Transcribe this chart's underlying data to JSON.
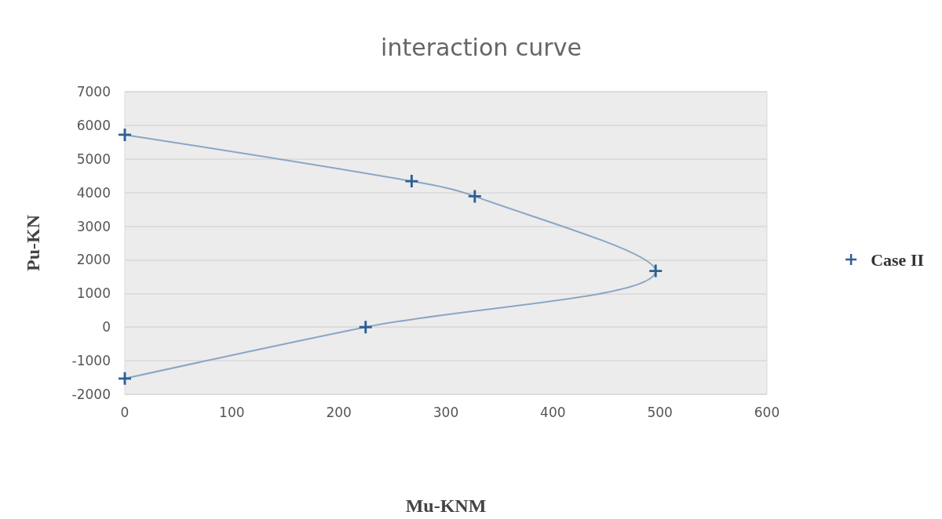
{
  "chart_data": {
    "type": "line",
    "title": "interaction curve",
    "xlabel": "Mu-KNM",
    "ylabel": "Pu-KN",
    "series": [
      {
        "name": "Case II",
        "color": "#2e5f96",
        "x": [
          0,
          268,
          327,
          496,
          225,
          0
        ],
        "values": [
          5720,
          4340,
          3890,
          1670,
          0,
          -1530
        ]
      }
    ],
    "xlim": [
      0,
      600
    ],
    "xticks": [
      0,
      100,
      200,
      300,
      400,
      500,
      600
    ],
    "ylim": [
      -2000,
      7000
    ],
    "yticks": [
      -2000,
      -1000,
      0,
      1000,
      2000,
      3000,
      4000,
      5000,
      6000,
      7000
    ],
    "grid": "y",
    "legend": "right",
    "marker": "cross",
    "line_style": "solid"
  }
}
